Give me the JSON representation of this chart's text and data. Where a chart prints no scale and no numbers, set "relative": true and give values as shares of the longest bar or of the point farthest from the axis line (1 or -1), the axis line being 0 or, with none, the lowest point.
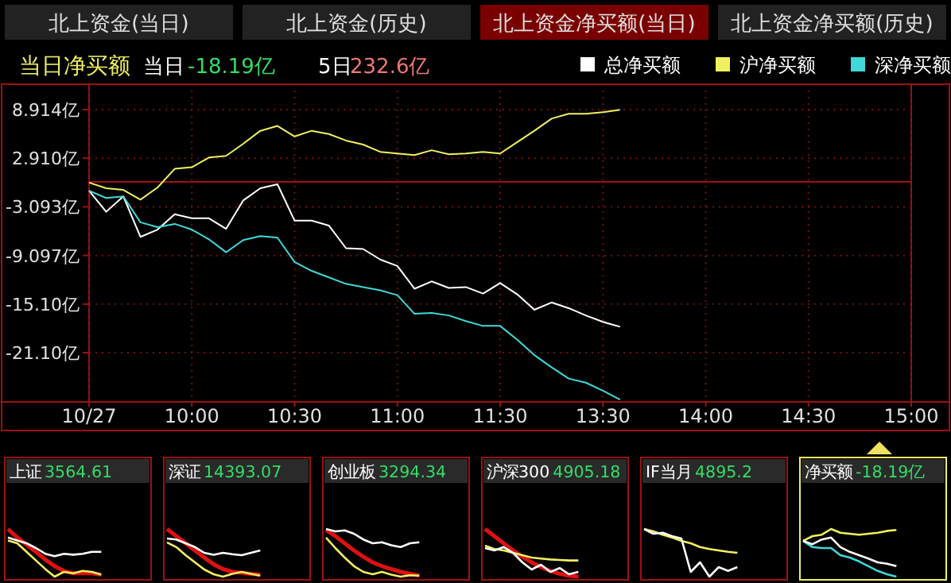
{
  "chart_data": [
    {
      "type": "other",
      "annotations": [
        "北上资金(当日)",
        "北上资金(历史)",
        "北上资金净买额(当日)",
        "北上资金净买额(历史)"
      ]
    },
    {
      "type": "line",
      "title": "当日净买额",
      "annotations": [
        "当日",
        "-18.19亿",
        "5日",
        "232.6亿"
      ],
      "categories": [
        "10/27",
        null,
        null,
        null,
        null,
        null,
        "10:00",
        null,
        null,
        null,
        null,
        null,
        "10:30",
        null,
        null,
        null,
        null,
        null,
        "11:00",
        null,
        null,
        null,
        null,
        null,
        "11:30",
        null,
        null,
        null,
        null,
        null,
        "13:30",
        null,
        null,
        null,
        null,
        null,
        "14:00",
        null,
        null,
        null,
        null,
        null,
        "14:30",
        null,
        null,
        null,
        null,
        null,
        "15:00"
      ],
      "ylim": [
        -27.18,
        11.27
      ],
      "yticks": [
        {
          "value": 8.914,
          "label": "8.914亿"
        },
        {
          "value": 2.91,
          "label": "2.910亿"
        },
        {
          "value": -3.093,
          "label": "-3.093亿"
        },
        {
          "value": -9.097,
          "label": "-9.097亿"
        },
        {
          "value": -15.1,
          "label": "-15.10亿"
        },
        {
          "value": -21.1,
          "label": "-21.10亿"
        }
      ],
      "grid": true,
      "legend": "top right",
      "ref_lines": [
        {
          "axis": "y",
          "value": 0,
          "color": "#a01010"
        }
      ],
      "series": [
        {
          "name": "总净买额",
          "color": "#ffffff",
          "values": [
            -1.1,
            -3.7,
            -1.8,
            -6.8,
            -5.9,
            -4,
            -4.5,
            -4.5,
            -5.8,
            -2.3,
            -0.8,
            -0.3,
            -4.8,
            -4.8,
            -5.4,
            -8.2,
            -8.3,
            -9.6,
            -10.4,
            -13.2,
            -12.3,
            -13.1,
            -13,
            -13.8,
            -12.5,
            -13.9,
            -15.8,
            -14.9,
            -15.6,
            -16.5,
            -17.3,
            -17.9,
            null,
            null,
            null,
            null,
            null,
            null,
            null,
            null,
            null,
            null,
            null,
            null,
            null,
            null,
            null,
            null,
            null
          ]
        },
        {
          "name": "沪净买额",
          "color": "#f0f060",
          "values": [
            -0.1,
            -0.8,
            -1,
            -2.2,
            -0.7,
            1.6,
            1.8,
            3,
            3.2,
            4.7,
            6.3,
            6.9,
            5.6,
            6.3,
            5.9,
            5.1,
            4.6,
            3.7,
            3.5,
            3.3,
            3.9,
            3.4,
            3.5,
            3.7,
            3.5,
            4.9,
            6.3,
            7.8,
            8.4,
            8.4,
            8.6,
            8.9,
            null,
            null,
            null,
            null,
            null,
            null,
            null,
            null,
            null,
            null,
            null,
            null,
            null,
            null,
            null,
            null,
            null
          ]
        },
        {
          "name": "深净买额",
          "color": "#40d8d8",
          "values": [
            -1.1,
            -2,
            -1.8,
            -5,
            -5.6,
            -5.2,
            -5.9,
            -7.1,
            -8.7,
            -7.2,
            -6.7,
            -6.9,
            -9.9,
            -11,
            -11.8,
            -12.6,
            -13,
            -13.4,
            -14,
            -16.3,
            -16.2,
            -16.5,
            -17.2,
            -17.8,
            -17.8,
            -19.5,
            -21.4,
            -22.9,
            -24.3,
            -24.8,
            -25.8,
            -26.9,
            null,
            null,
            null,
            null,
            null,
            null,
            null,
            null,
            null,
            null,
            null,
            null,
            null,
            null,
            null,
            null,
            null
          ]
        }
      ]
    },
    {
      "type": "line",
      "relative": true,
      "title": "上证",
      "annotations": [
        "3564.61"
      ],
      "categories": [
        null,
        null,
        null,
        null,
        null,
        null,
        null,
        null,
        null,
        null,
        null,
        null,
        null,
        null,
        null,
        null
      ],
      "series": [
        {
          "color": "#ffffff",
          "values": [
            0.82,
            0.76,
            0.7,
            0.6,
            0.48,
            0.43,
            0.48,
            0.46,
            0.48,
            0.52,
            0.52,
            null,
            null,
            null,
            null,
            null
          ]
        },
        {
          "color": "#f0f060",
          "values": [
            0.76,
            0.7,
            0.52,
            0.34,
            0.16,
            0,
            0.1,
            0.07,
            0.12,
            0.1,
            0.04,
            null,
            null,
            null,
            null,
            null
          ]
        },
        {
          "color": "#e01010",
          "values": [
            1,
            0.82,
            0.67,
            0.52,
            0.36,
            0.22,
            0.12,
            0.07,
            0.07,
            0.07,
            0.04,
            null,
            null,
            null,
            null,
            null
          ]
        }
      ]
    },
    {
      "type": "line",
      "relative": true,
      "title": "深证",
      "annotations": [
        "14393.07"
      ],
      "categories": [
        null,
        null,
        null,
        null,
        null,
        null,
        null,
        null,
        null,
        null,
        null,
        null,
        null,
        null,
        null,
        null
      ],
      "series": [
        {
          "color": "#ffffff",
          "values": [
            0.8,
            0.78,
            0.7,
            0.62,
            0.5,
            0.46,
            0.5,
            0.47,
            0.45,
            0.5,
            0.55,
            null,
            null,
            null,
            null,
            null
          ]
        },
        {
          "color": "#f0f060",
          "values": [
            0.72,
            0.62,
            0.45,
            0.3,
            0.15,
            0.05,
            0,
            0.06,
            0.1,
            0.06,
            0.02,
            null,
            null,
            null,
            null,
            null
          ]
        },
        {
          "color": "#e01010",
          "values": [
            1,
            0.85,
            0.7,
            0.55,
            0.4,
            0.26,
            0.16,
            0.1,
            0.08,
            0.06,
            0.04,
            null,
            null,
            null,
            null,
            null
          ]
        }
      ]
    },
    {
      "type": "line",
      "relative": true,
      "title": "创业板",
      "annotations": [
        "3294.34"
      ],
      "categories": [
        null,
        null,
        null,
        null,
        null,
        null,
        null,
        null,
        null,
        null,
        null,
        null,
        null,
        null,
        null,
        null
      ],
      "series": [
        {
          "color": "#ffffff",
          "values": [
            1,
            0.95,
            0.97,
            0.9,
            0.78,
            0.7,
            0.72,
            0.66,
            0.62,
            0.7,
            0.72,
            null,
            null,
            null,
            null,
            null
          ]
        },
        {
          "color": "#f0f060",
          "values": [
            0.82,
            0.6,
            0.4,
            0.22,
            0.1,
            0.05,
            0.1,
            0.04,
            0,
            0.03,
            0.02,
            null,
            null,
            null,
            null,
            null
          ]
        },
        {
          "color": "#e01010",
          "values": [
            0.98,
            0.85,
            0.7,
            0.55,
            0.42,
            0.3,
            0.22,
            0.16,
            0.1,
            0.06,
            0.02,
            null,
            null,
            null,
            null,
            null
          ]
        }
      ]
    },
    {
      "type": "line",
      "relative": true,
      "title": "沪深300",
      "annotations": [
        "4905.18"
      ],
      "categories": [
        null,
        null,
        null,
        null,
        null,
        null,
        null,
        null,
        null,
        null,
        null,
        null,
        null,
        null,
        null,
        null
      ],
      "series": [
        {
          "color": "#ffffff",
          "values": [
            0.6,
            0.55,
            0.62,
            0.5,
            0.3,
            0.15,
            0.25,
            0.1,
            0.18,
            0.05,
            0.1,
            null,
            null,
            null,
            null,
            null
          ]
        },
        {
          "color": "#f0f060",
          "values": [
            0.65,
            0.58,
            0.55,
            0.5,
            0.45,
            0.4,
            0.38,
            0.36,
            0.35,
            0.34,
            0.34,
            null,
            null,
            null,
            null,
            null
          ]
        },
        {
          "color": "#e01010",
          "values": [
            1,
            0.85,
            0.7,
            0.55,
            0.42,
            0.3,
            0.2,
            0.12,
            0.06,
            0.02,
            0,
            null,
            null,
            null,
            null,
            null
          ]
        }
      ]
    },
    {
      "type": "line",
      "relative": true,
      "title": "IF当月",
      "annotations": [
        "4895.2"
      ],
      "categories": [
        null,
        null,
        null,
        null,
        null,
        null,
        null,
        null,
        null,
        null,
        null,
        null,
        null,
        null,
        null,
        null
      ],
      "series": [
        {
          "color": "#ffffff",
          "values": [
            1,
            0.9,
            0.92,
            0.85,
            0.8,
            0.1,
            0.3,
            0,
            0.2,
            0.12,
            0.2,
            null,
            null,
            null,
            null,
            null
          ]
        },
        {
          "color": "#f0f060",
          "values": [
            1,
            0.95,
            0.88,
            0.82,
            0.75,
            0.7,
            0.62,
            0.58,
            0.55,
            0.52,
            0.5,
            null,
            null,
            null,
            null,
            null
          ]
        }
      ]
    },
    {
      "type": "line",
      "relative": true,
      "title": "净买额",
      "annotations": [
        "-18.19亿"
      ],
      "categories": [
        null,
        null,
        null,
        null,
        null,
        null,
        null,
        null,
        null,
        null,
        null,
        null,
        null,
        null,
        null,
        null
      ],
      "series": [
        {
          "color": "#ffffff",
          "values": [
            0.75,
            0.68,
            0.78,
            0.82,
            0.62,
            0.52,
            0.45,
            0.38,
            0.3,
            0.27,
            0.22,
            null,
            null,
            null,
            null,
            null
          ]
        },
        {
          "color": "#f0f060",
          "values": [
            0.75,
            0.85,
            0.88,
            1,
            0.92,
            0.9,
            0.88,
            0.9,
            0.92,
            0.96,
            0.98,
            null,
            null,
            null,
            null,
            null
          ]
        },
        {
          "color": "#40d8d8",
          "values": [
            0.75,
            0.62,
            0.6,
            0.6,
            0.45,
            0.4,
            0.32,
            0.22,
            0.12,
            0.05,
            0,
            null,
            null,
            null,
            null,
            null
          ]
        }
      ]
    }
  ]
}
